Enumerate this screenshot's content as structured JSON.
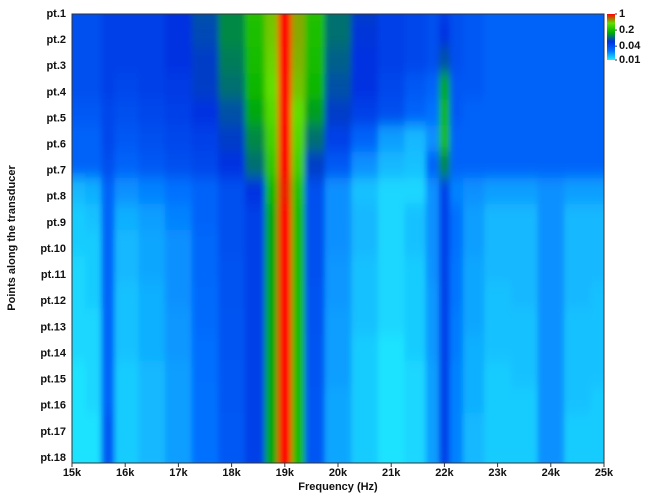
{
  "chart_data": {
    "type": "heatmap",
    "x_label": "Frequency (Hz)",
    "y_label": "Points along the transducer",
    "x": [
      15000,
      15500,
      15600,
      16000,
      16500,
      17000,
      17500,
      18000,
      18500,
      18750,
      19000,
      19250,
      19500,
      20000,
      20500,
      21000,
      21500,
      21800,
      22000,
      22200,
      22500,
      23000,
      23500,
      24000,
      24500,
      25000
    ],
    "categories": [
      "pt.1",
      "pt.2",
      "pt.3",
      "pt.4",
      "pt.5",
      "pt.6",
      "pt.7",
      "pt.8",
      "pt.9",
      "pt.10",
      "pt.11",
      "pt.12",
      "pt.13",
      "pt.14",
      "pt.15",
      "pt.16",
      "pt.17",
      "pt.18"
    ],
    "z": [
      [
        0.04,
        0.04,
        0.05,
        0.05,
        0.05,
        0.06,
        0.08,
        0.12,
        0.22,
        0.45,
        1,
        0.5,
        0.22,
        0.1,
        0.07,
        0.05,
        0.045,
        0.04,
        0.05,
        0.04,
        0.035,
        0.03,
        0.03,
        0.03,
        0.03,
        0.03
      ],
      [
        0.04,
        0.04,
        0.05,
        0.05,
        0.05,
        0.06,
        0.075,
        0.12,
        0.21,
        0.44,
        1,
        0.5,
        0.21,
        0.1,
        0.065,
        0.05,
        0.045,
        0.04,
        0.06,
        0.04,
        0.035,
        0.03,
        0.03,
        0.03,
        0.03,
        0.03
      ],
      [
        0.04,
        0.04,
        0.05,
        0.05,
        0.05,
        0.06,
        0.07,
        0.11,
        0.2,
        0.42,
        1,
        0.48,
        0.2,
        0.09,
        0.06,
        0.05,
        0.045,
        0.04,
        0.08,
        0.04,
        0.035,
        0.03,
        0.03,
        0.03,
        0.03,
        0.03
      ],
      [
        0.04,
        0.04,
        0.05,
        0.045,
        0.05,
        0.055,
        0.07,
        0.1,
        0.18,
        0.4,
        1,
        0.45,
        0.18,
        0.08,
        0.06,
        0.045,
        0.035,
        0.03,
        0.15,
        0.035,
        0.035,
        0.03,
        0.03,
        0.03,
        0.03,
        0.03
      ],
      [
        0.035,
        0.035,
        0.045,
        0.04,
        0.045,
        0.05,
        0.06,
        0.08,
        0.15,
        0.35,
        1,
        0.4,
        0.14,
        0.07,
        0.05,
        0.04,
        0.03,
        0.025,
        0.18,
        0.035,
        0.03,
        0.03,
        0.03,
        0.03,
        0.03,
        0.03
      ],
      [
        0.03,
        0.03,
        0.045,
        0.035,
        0.04,
        0.045,
        0.05,
        0.07,
        0.12,
        0.3,
        1,
        0.35,
        0.1,
        0.05,
        0.03,
        0.018,
        0.015,
        0.02,
        0.2,
        0.03,
        0.03,
        0.03,
        0.03,
        0.03,
        0.03,
        0.03
      ],
      [
        0.03,
        0.03,
        0.04,
        0.03,
        0.035,
        0.04,
        0.045,
        0.06,
        0.1,
        0.25,
        1,
        0.3,
        0.07,
        0.035,
        0.02,
        0.015,
        0.014,
        0.03,
        0.12,
        0.03,
        0.03,
        0.03,
        0.03,
        0.03,
        0.03,
        0.03
      ],
      [
        0.015,
        0.016,
        0.03,
        0.02,
        0.022,
        0.025,
        0.03,
        0.04,
        0.06,
        0.18,
        0.9,
        0.22,
        0.04,
        0.02,
        0.014,
        0.012,
        0.012,
        0.02,
        0.05,
        0.022,
        0.02,
        0.018,
        0.018,
        0.02,
        0.018,
        0.018
      ],
      [
        0.013,
        0.014,
        0.03,
        0.016,
        0.018,
        0.022,
        0.03,
        0.04,
        0.05,
        0.15,
        1,
        0.2,
        0.04,
        0.02,
        0.015,
        0.012,
        0.014,
        0.02,
        0.05,
        0.025,
        0.018,
        0.015,
        0.015,
        0.02,
        0.015,
        0.015
      ],
      [
        0.013,
        0.013,
        0.03,
        0.015,
        0.017,
        0.02,
        0.028,
        0.04,
        0.05,
        0.15,
        1,
        0.2,
        0.04,
        0.02,
        0.015,
        0.012,
        0.014,
        0.02,
        0.05,
        0.025,
        0.018,
        0.015,
        0.015,
        0.02,
        0.015,
        0.015
      ],
      [
        0.012,
        0.013,
        0.03,
        0.015,
        0.017,
        0.02,
        0.028,
        0.038,
        0.05,
        0.15,
        1,
        0.2,
        0.04,
        0.019,
        0.014,
        0.012,
        0.013,
        0.02,
        0.05,
        0.024,
        0.017,
        0.015,
        0.015,
        0.02,
        0.015,
        0.015
      ],
      [
        0.012,
        0.013,
        0.03,
        0.014,
        0.016,
        0.02,
        0.027,
        0.038,
        0.05,
        0.15,
        1,
        0.2,
        0.038,
        0.019,
        0.014,
        0.012,
        0.013,
        0.019,
        0.05,
        0.024,
        0.017,
        0.014,
        0.015,
        0.02,
        0.015,
        0.014
      ],
      [
        0.012,
        0.012,
        0.03,
        0.014,
        0.016,
        0.019,
        0.027,
        0.037,
        0.05,
        0.15,
        1,
        0.2,
        0.038,
        0.018,
        0.014,
        0.012,
        0.013,
        0.019,
        0.05,
        0.023,
        0.017,
        0.014,
        0.014,
        0.02,
        0.014,
        0.014
      ],
      [
        0.012,
        0.012,
        0.03,
        0.014,
        0.016,
        0.019,
        0.026,
        0.037,
        0.05,
        0.15,
        1,
        0.2,
        0.037,
        0.018,
        0.013,
        0.011,
        0.013,
        0.019,
        0.05,
        0.023,
        0.016,
        0.014,
        0.014,
        0.02,
        0.014,
        0.014
      ],
      [
        0.011,
        0.012,
        0.03,
        0.013,
        0.015,
        0.018,
        0.026,
        0.036,
        0.05,
        0.15,
        1,
        0.2,
        0.037,
        0.018,
        0.013,
        0.011,
        0.012,
        0.018,
        0.05,
        0.022,
        0.016,
        0.013,
        0.014,
        0.02,
        0.014,
        0.014
      ],
      [
        0.011,
        0.012,
        0.03,
        0.013,
        0.015,
        0.018,
        0.025,
        0.036,
        0.05,
        0.15,
        1,
        0.2,
        0.036,
        0.017,
        0.013,
        0.011,
        0.012,
        0.018,
        0.05,
        0.022,
        0.016,
        0.013,
        0.013,
        0.02,
        0.014,
        0.013
      ],
      [
        0.011,
        0.011,
        0.035,
        0.013,
        0.015,
        0.018,
        0.025,
        0.035,
        0.05,
        0.15,
        1,
        0.2,
        0.036,
        0.017,
        0.013,
        0.011,
        0.012,
        0.018,
        0.05,
        0.022,
        0.015,
        0.013,
        0.013,
        0.02,
        0.013,
        0.013
      ],
      [
        0.011,
        0.011,
        0.035,
        0.013,
        0.015,
        0.018,
        0.025,
        0.035,
        0.05,
        0.15,
        1,
        0.2,
        0.036,
        0.017,
        0.013,
        0.011,
        0.012,
        0.018,
        0.05,
        0.022,
        0.015,
        0.013,
        0.013,
        0.02,
        0.013,
        0.013
      ]
    ],
    "xlim": [
      15000,
      25000
    ],
    "xticks": [
      {
        "value": 15000,
        "label": "15k"
      },
      {
        "value": 16000,
        "label": "16k"
      },
      {
        "value": 17000,
        "label": "17k"
      },
      {
        "value": 18000,
        "label": "18k"
      },
      {
        "value": 19000,
        "label": "19k"
      },
      {
        "value": 20000,
        "label": "20k"
      },
      {
        "value": 21000,
        "label": "21k"
      },
      {
        "value": 22000,
        "label": "22k"
      },
      {
        "value": 23000,
        "label": "23k"
      },
      {
        "value": 24000,
        "label": "24k"
      },
      {
        "value": 25000,
        "label": "25k"
      }
    ],
    "clim": [
      0.01,
      1
    ],
    "color_scale": "log",
    "colors": [
      "#20f0ff",
      "#0070ff",
      "#0030e0",
      "#00b000",
      "#60e000",
      "#ff0000"
    ],
    "cticks": [
      1,
      0.2,
      0.04,
      0.01
    ]
  }
}
